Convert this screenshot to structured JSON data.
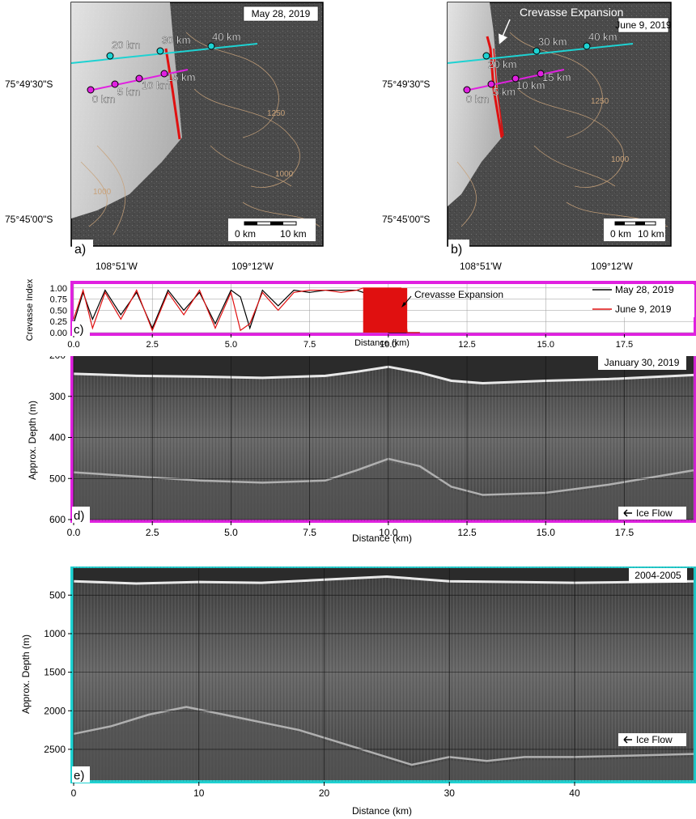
{
  "panels": {
    "a": {
      "label": "a)",
      "date": "May 28, 2019"
    },
    "b": {
      "label": "b)",
      "date": "June 9, 2019",
      "annotation": "Crevasse Expansion"
    },
    "c": {
      "label": "c)"
    },
    "d": {
      "label": "d)",
      "date": "January 30, 2019",
      "flow": "Ice Flow"
    },
    "e": {
      "label": "e)",
      "date": "2004-2005",
      "flow": "Ice Flow"
    }
  },
  "map": {
    "lat_labels": [
      "75°49'30\"S",
      "75°45'00\"S"
    ],
    "lon_labels": [
      "108°51'W",
      "109°12'W"
    ],
    "km_markers_cyan": [
      "20 km",
      "30 km",
      "40 km"
    ],
    "km_markers_magenta": [
      "0 km",
      "5 km",
      "10 km",
      "15 km"
    ],
    "scalebar": [
      "0 km",
      "10 km"
    ],
    "contour_labels": [
      "1250",
      "1000",
      "1000"
    ],
    "colors": {
      "cyan": "#1ed2d2",
      "magenta": "#e020e0",
      "front": "#e01010",
      "contour": "#c8a27a"
    }
  },
  "chart_data": [
    {
      "id": "c",
      "type": "line",
      "xlabel": "Distance (km)",
      "ylabel": "Crevasse Index",
      "xlim": [
        0,
        19.7
      ],
      "ylim": [
        0,
        1.0
      ],
      "xticks": [
        "0.0",
        "2.5",
        "5.0",
        "7.5",
        "10.0",
        "12.5",
        "15.0",
        "17.5"
      ],
      "yticks": [
        "0.00",
        "0.25",
        "0.50",
        "0.75",
        "1.00"
      ],
      "annotation": "Crevasse Expansion",
      "legend_placement": "right",
      "series": [
        {
          "name": "May 28, 2019",
          "color": "#000000",
          "x": [
            0.0,
            0.3,
            0.6,
            1.0,
            1.5,
            2.0,
            2.5,
            3.0,
            3.5,
            4.0,
            4.5,
            5.0,
            5.3,
            5.6,
            6.0,
            6.5,
            7.0,
            7.5,
            8.0,
            8.5,
            9.0,
            9.2,
            9.5,
            10.0,
            10.5,
            11.0
          ],
          "values": [
            0.2,
            0.9,
            0.3,
            0.95,
            0.4,
            0.9,
            0.1,
            0.95,
            0.5,
            0.9,
            0.2,
            0.95,
            0.8,
            0.1,
            0.95,
            0.6,
            0.95,
            0.9,
            0.95,
            0.95,
            0.95,
            0.9,
            0.95,
            0.0,
            0.0,
            0.0
          ]
        },
        {
          "name": "June 9, 2019",
          "color": "#e01010",
          "x": [
            0.0,
            0.3,
            0.6,
            1.0,
            1.5,
            2.0,
            2.5,
            3.0,
            3.5,
            4.0,
            4.5,
            5.0,
            5.3,
            5.6,
            6.0,
            6.5,
            7.0,
            7.5,
            8.0,
            8.5,
            9.0,
            9.2,
            9.5,
            10.0,
            10.4,
            10.6,
            11.0
          ],
          "values": [
            0.3,
            0.95,
            0.1,
            0.9,
            0.3,
            0.95,
            0.05,
            0.9,
            0.4,
            0.95,
            0.1,
            0.9,
            0.05,
            0.2,
            0.9,
            0.5,
            0.9,
            0.95,
            0.95,
            0.9,
            0.95,
            1.0,
            1.0,
            1.0,
            1.0,
            0.0,
            0.0
          ]
        }
      ]
    },
    {
      "id": "d",
      "type": "heatmap",
      "xlabel": "Distance (km)",
      "ylabel": "Approx. Depth (m)",
      "xlim": [
        0,
        19.7
      ],
      "ylim": [
        200,
        600
      ],
      "xticks": [
        "0.0",
        "2.5",
        "5.0",
        "7.5",
        "10.0",
        "12.5",
        "15.0",
        "17.5"
      ],
      "yticks": [
        "200",
        "300",
        "400",
        "500",
        "600"
      ],
      "surface_reflector": {
        "x": [
          0,
          2,
          4,
          6,
          8,
          9,
          10,
          11,
          12,
          13,
          15,
          17,
          19.7
        ],
        "y": [
          245,
          250,
          252,
          255,
          250,
          240,
          228,
          242,
          262,
          268,
          262,
          258,
          248
        ]
      },
      "bed_reflector": {
        "x": [
          0,
          2,
          4,
          6,
          8,
          9,
          10,
          11,
          12,
          13,
          15,
          17,
          19.7
        ],
        "y": [
          485,
          495,
          505,
          510,
          505,
          480,
          452,
          470,
          520,
          540,
          535,
          515,
          480
        ]
      }
    },
    {
      "id": "e",
      "type": "heatmap",
      "xlabel": "Distance (km)",
      "ylabel": "Approx. Depth (m)",
      "xlim": [
        0,
        49.5
      ],
      "ylim": [
        150,
        2900
      ],
      "xticks": [
        "0",
        "10",
        "20",
        "30",
        "40"
      ],
      "yticks": [
        "500",
        "1000",
        "1500",
        "2000",
        "2500"
      ],
      "surface_reflector": {
        "x": [
          0,
          5,
          10,
          15,
          20,
          25,
          30,
          35,
          40,
          45,
          49.5
        ],
        "y": [
          320,
          350,
          330,
          340,
          300,
          260,
          320,
          330,
          340,
          330,
          320
        ]
      },
      "bed_reflector": {
        "x": [
          0,
          3,
          6,
          9,
          12,
          15,
          18,
          21,
          24,
          27,
          30,
          33,
          36,
          40,
          45,
          49.5
        ],
        "y": [
          2300,
          2200,
          2050,
          1950,
          2050,
          2150,
          2250,
          2400,
          2550,
          2700,
          2600,
          2650,
          2600,
          2600,
          2580,
          2560
        ]
      }
    }
  ]
}
